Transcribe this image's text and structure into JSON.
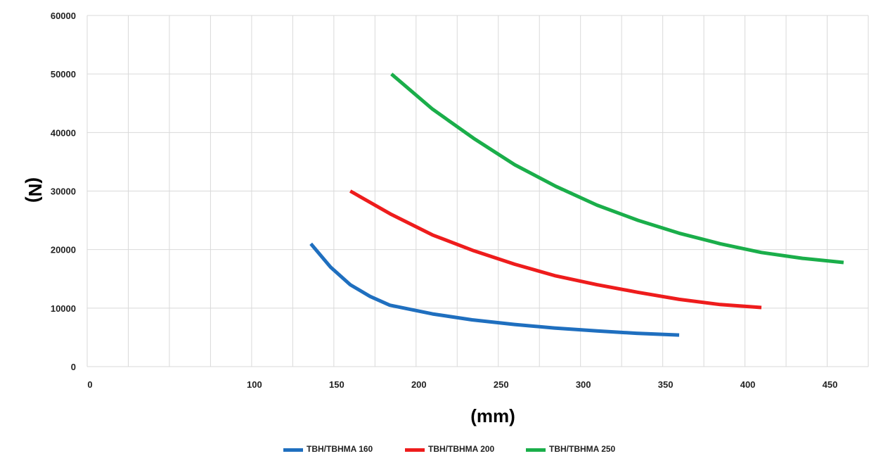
{
  "chart_data": {
    "type": "line",
    "title": "",
    "xlabel": "(mm)",
    "ylabel": "(N)",
    "xlim": [
      0,
      475
    ],
    "ylim": [
      0,
      60000
    ],
    "x_tick_labels": [
      {
        "x": 0,
        "label": "0"
      },
      {
        "x": 100,
        "label": "100"
      },
      {
        "x": 150,
        "label": "150"
      },
      {
        "x": 200,
        "label": "200"
      },
      {
        "x": 250,
        "label": "250"
      },
      {
        "x": 300,
        "label": "300"
      },
      {
        "x": 350,
        "label": "350"
      },
      {
        "x": 400,
        "label": "400"
      },
      {
        "x": 450,
        "label": "450"
      }
    ],
    "x_gridlines": [
      0,
      25,
      50,
      75,
      100,
      125,
      150,
      175,
      200,
      225,
      250,
      275,
      300,
      325,
      350,
      375,
      400,
      425,
      450,
      475
    ],
    "y_ticks": [
      0,
      10000,
      20000,
      30000,
      40000,
      50000,
      60000
    ],
    "grid": true,
    "legend_position": "bottom",
    "series": [
      {
        "name": "TBH/TBHMA 160",
        "color": "#1f6fbf",
        "points": [
          [
            136,
            21000
          ],
          [
            148,
            17000
          ],
          [
            160,
            14000
          ],
          [
            172,
            12000
          ],
          [
            184,
            10500
          ],
          [
            210,
            9000
          ],
          [
            234,
            8000
          ],
          [
            260,
            7200
          ],
          [
            284,
            6600
          ],
          [
            310,
            6100
          ],
          [
            334,
            5700
          ],
          [
            360,
            5400
          ]
        ]
      },
      {
        "name": "TBH/TBHMA 200",
        "color": "#ee1c1c",
        "points": [
          [
            160,
            30000
          ],
          [
            185,
            26000
          ],
          [
            210,
            22500
          ],
          [
            235,
            19800
          ],
          [
            260,
            17500
          ],
          [
            285,
            15500
          ],
          [
            310,
            14000
          ],
          [
            335,
            12700
          ],
          [
            360,
            11500
          ],
          [
            385,
            10600
          ],
          [
            410,
            10100
          ]
        ]
      },
      {
        "name": "TBH/TBHMA 250",
        "color": "#1aae4a",
        "points": [
          [
            185,
            50000
          ],
          [
            210,
            44000
          ],
          [
            235,
            39000
          ],
          [
            260,
            34500
          ],
          [
            285,
            30800
          ],
          [
            310,
            27600
          ],
          [
            335,
            25000
          ],
          [
            360,
            22800
          ],
          [
            385,
            21000
          ],
          [
            410,
            19500
          ],
          [
            435,
            18500
          ],
          [
            460,
            17800
          ]
        ]
      }
    ]
  }
}
